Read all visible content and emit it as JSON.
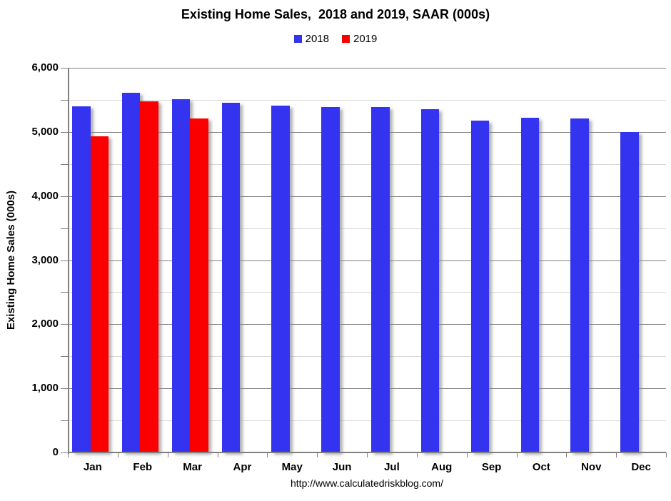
{
  "chart_data": {
    "type": "bar",
    "title": "Existing Home Sales,  2018 and 2019, SAAR (000s)",
    "ylabel": "Existing Home Sales (000s)",
    "xlabel": "",
    "categories": [
      "Jan",
      "Feb",
      "Mar",
      "Apr",
      "May",
      "Jun",
      "Jul",
      "Aug",
      "Sep",
      "Oct",
      "Nov",
      "Dec"
    ],
    "series": [
      {
        "name": "2018",
        "color": "#3434F0",
        "values": [
          5400,
          5610,
          5510,
          5450,
          5410,
          5390,
          5390,
          5350,
          5180,
          5220,
          5210,
          5000
        ]
      },
      {
        "name": "2019",
        "color": "#FA0000",
        "values": [
          4930,
          5480,
          5210,
          null,
          null,
          null,
          null,
          null,
          null,
          null,
          null,
          null
        ]
      }
    ],
    "ylim": [
      0,
      6000
    ],
    "ytick_major_step": 1000,
    "ytick_minor_step": 500,
    "ytick_labels": [
      "0",
      "1,000",
      "2,000",
      "3,000",
      "4,000",
      "5,000",
      "6,000"
    ],
    "grid": "horizontal major+minor",
    "legend_position": "top-center"
  },
  "footer": {
    "url": "http://www.calculatedriskblog.com/"
  },
  "colors": {
    "bar_2018": "#3434F0",
    "bar_2019": "#FA0000",
    "major_gridline": "#808080",
    "minor_gridline": "#D8D8D8",
    "axis": "#808080",
    "text": "#000000",
    "background": "#FFFFFF"
  }
}
